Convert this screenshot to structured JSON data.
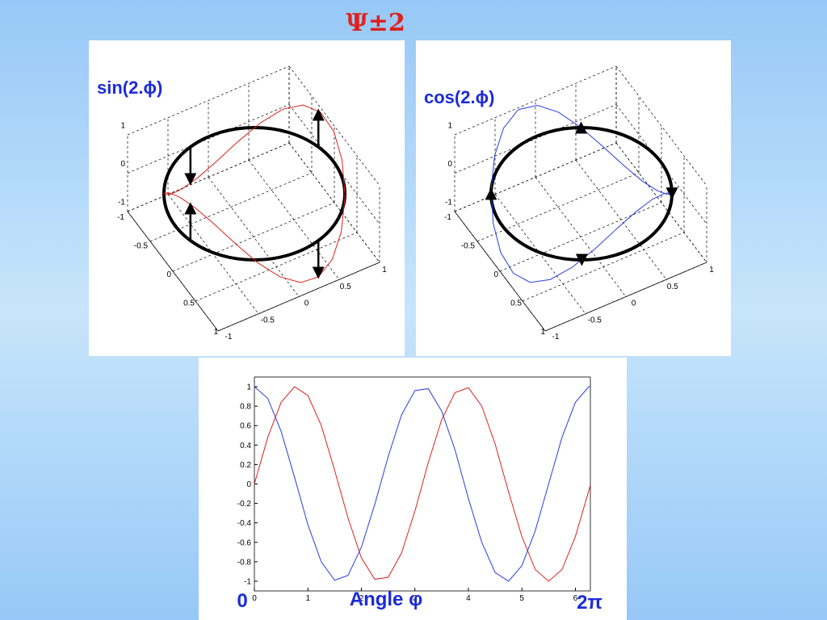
{
  "title": "Ψ±2",
  "chart_data": [
    {
      "type": "ring3d",
      "title": "sin(2.ϕ)",
      "color": "#e0201c",
      "zticks": [
        -1,
        0,
        1
      ],
      "xticks": [
        -1,
        -0.5,
        0,
        0.5,
        1
      ],
      "yticks": [
        -1,
        -0.5,
        0,
        0.5,
        1
      ]
    },
    {
      "type": "ring3d",
      "title": "cos(2.ϕ)",
      "color": "#2a3de0",
      "zticks": [
        -1,
        0,
        1
      ],
      "xticks": [
        -1,
        -0.5,
        0,
        0.5,
        1
      ],
      "yticks": [
        -1,
        -0.5,
        0,
        0.5,
        1
      ]
    },
    {
      "type": "line",
      "x": [
        0,
        0.25,
        0.5,
        0.75,
        1,
        1.25,
        1.5,
        1.75,
        2,
        2.25,
        2.5,
        2.75,
        3,
        3.25,
        3.5,
        3.75,
        4,
        4.25,
        4.5,
        4.75,
        5,
        5.25,
        5.5,
        5.75,
        6,
        6.25,
        6.28
      ],
      "series": [
        {
          "color": "#e0201c",
          "values": [
            0,
            0.48,
            0.84,
            1.0,
            0.91,
            0.6,
            0.14,
            -0.35,
            -0.76,
            -0.98,
            -0.96,
            -0.71,
            -0.28,
            0.22,
            0.66,
            0.94,
            0.99,
            0.8,
            0.41,
            -0.08,
            -0.54,
            -0.88,
            -1.0,
            -0.88,
            -0.54,
            -0.07,
            -0.01
          ]
        },
        {
          "color": "#2a3de0",
          "values": [
            1,
            0.88,
            0.54,
            0.07,
            -0.42,
            -0.8,
            -0.99,
            -0.94,
            -0.65,
            -0.21,
            0.28,
            0.71,
            0.96,
            0.98,
            0.75,
            0.35,
            -0.15,
            -0.6,
            -0.91,
            -1.0,
            -0.84,
            -0.48,
            0.0,
            0.48,
            0.84,
            1.0,
            1.0
          ]
        }
      ],
      "xlim": [
        0,
        6.28
      ],
      "ylim": [
        -1.1,
        1.1
      ],
      "xticks": [
        0,
        1,
        2,
        3,
        4,
        5,
        6
      ],
      "yticks": [
        1,
        0.8,
        0.6,
        0.4,
        0.2,
        0,
        -0.2,
        -0.4,
        -0.6,
        -0.8,
        -1
      ],
      "annotations": [
        "0",
        "Angle φ",
        "2π"
      ]
    }
  ]
}
